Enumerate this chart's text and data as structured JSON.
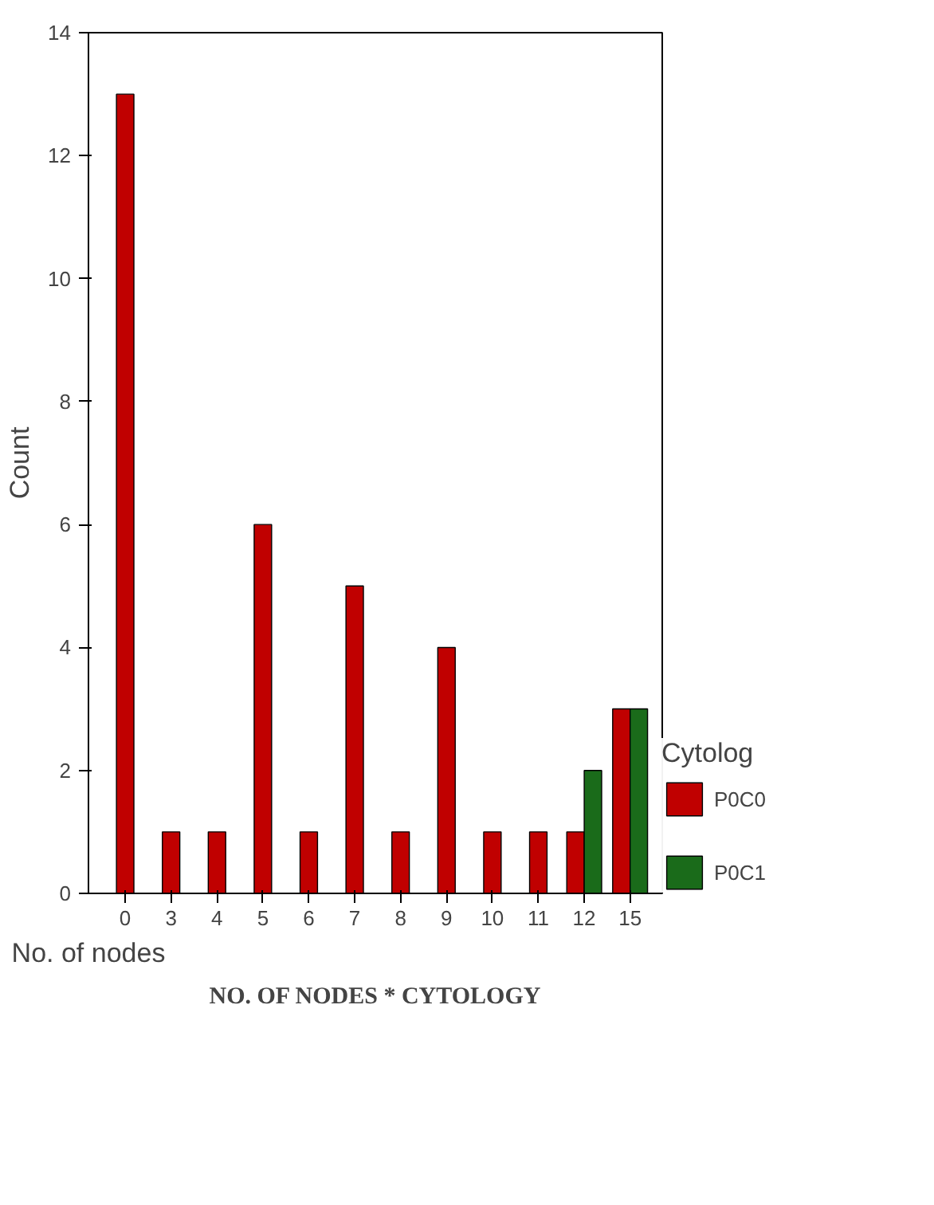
{
  "chart_data": {
    "type": "bar",
    "title": "NO. OF NODES * CYTOLOGY",
    "xlabel": "No. of nodes",
    "ylabel": "Count",
    "legend_title": "Cytolog",
    "categories": [
      "0",
      "3",
      "4",
      "5",
      "6",
      "7",
      "8",
      "9",
      "10",
      "11",
      "12",
      "15"
    ],
    "series": [
      {
        "name": "P0C0",
        "color": "#c00000",
        "values": [
          13,
          1,
          1,
          6,
          1,
          5,
          1,
          4,
          1,
          1,
          1,
          3
        ]
      },
      {
        "name": "P0C1",
        "color": "#1a6b1a",
        "values": [
          null,
          null,
          null,
          null,
          null,
          null,
          null,
          null,
          null,
          null,
          2,
          3
        ]
      }
    ],
    "ylim": [
      0,
      14
    ],
    "yticks": [
      0,
      2,
      4,
      6,
      8,
      10,
      12,
      14
    ],
    "grid": false,
    "legend": "right"
  }
}
